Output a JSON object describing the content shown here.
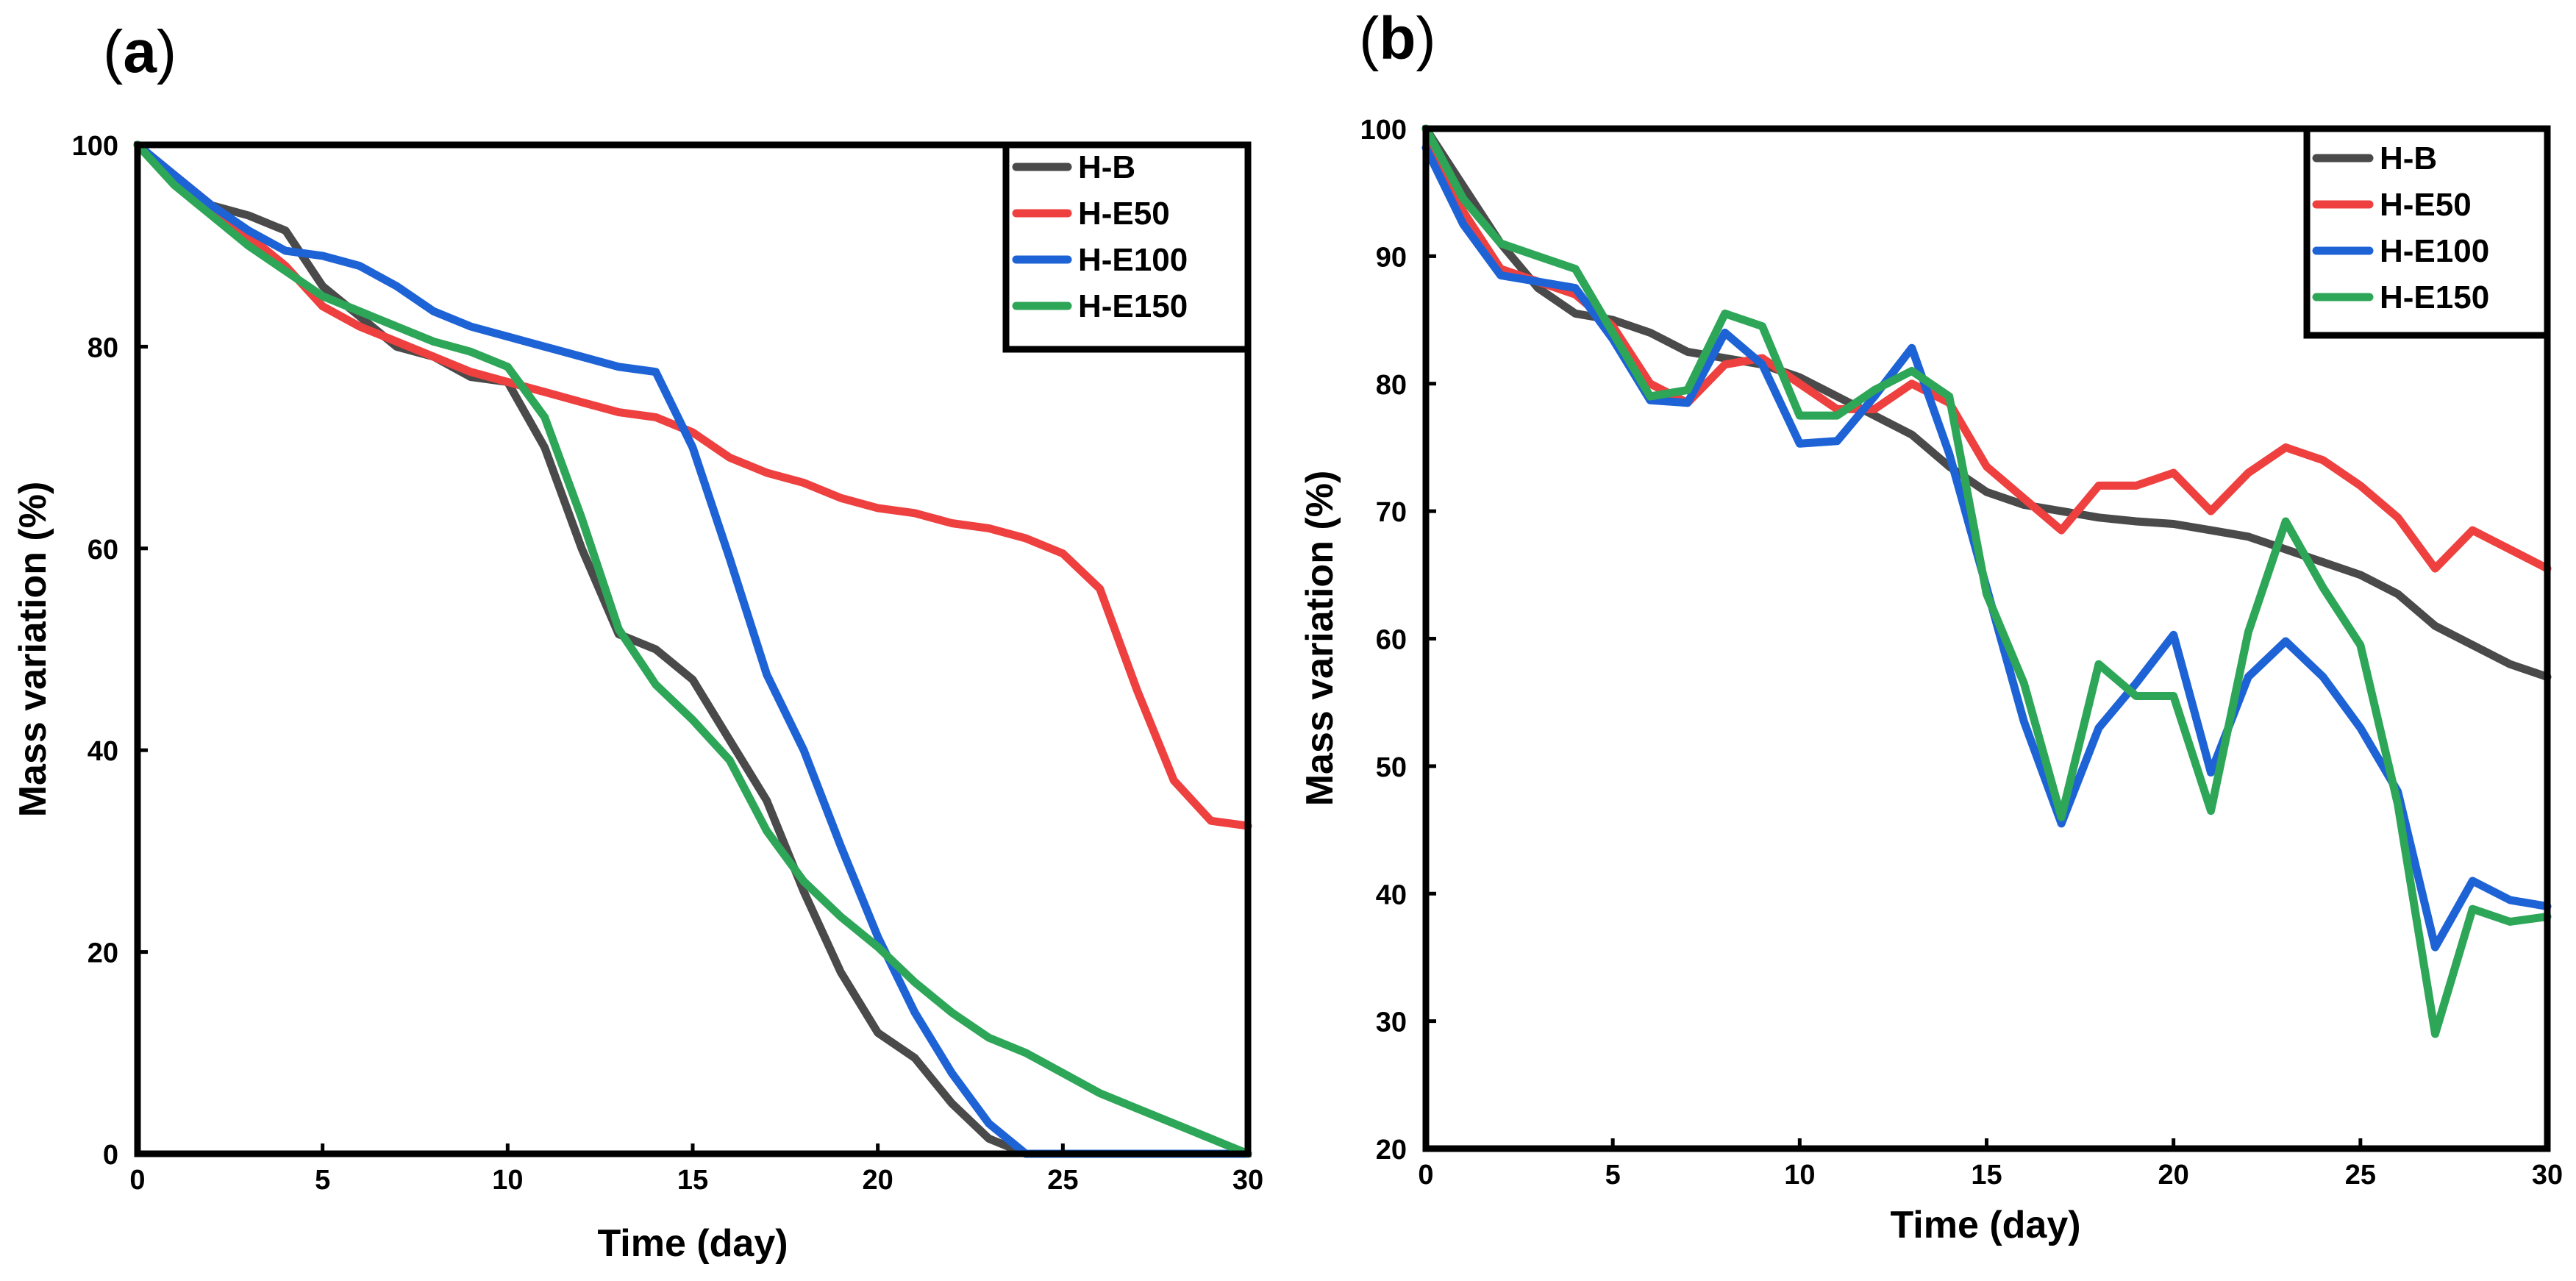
{
  "chart_data": [
    {
      "panel": "a",
      "type": "line",
      "xlabel": "Time (day)",
      "ylabel": "Mass variation (%)",
      "xlim": [
        0,
        30
      ],
      "ylim": [
        0,
        100
      ],
      "xticks": [
        0,
        5,
        10,
        15,
        20,
        25,
        30
      ],
      "yticks": [
        0,
        20,
        40,
        60,
        80,
        100
      ],
      "legend": "top-right",
      "series": [
        {
          "name": "H-B",
          "color": "#4a4a4a",
          "x": [
            0,
            1,
            2,
            2.5,
            3,
            4,
            5,
            6,
            7,
            8,
            9,
            10,
            11,
            12,
            13,
            14,
            15,
            16,
            17,
            18,
            19,
            20,
            21,
            22,
            23,
            24,
            25,
            26,
            27,
            28,
            29,
            30
          ],
          "values": [
            100,
            97,
            94,
            93.5,
            93,
            91.5,
            86,
            83,
            80,
            79,
            77,
            76.5,
            70,
            60,
            51.5,
            50,
            47,
            41,
            35,
            26,
            18,
            12,
            9.5,
            5,
            1.5,
            0,
            0,
            0,
            0,
            0,
            0,
            0
          ]
        },
        {
          "name": "H-E50",
          "color": "#ef4040",
          "x": [
            0,
            1,
            2,
            3,
            4,
            5,
            6,
            7,
            8,
            9,
            10,
            11,
            12,
            13,
            14,
            15,
            16,
            17,
            18,
            19,
            20,
            21,
            22,
            23,
            24,
            25,
            26,
            27,
            28,
            29,
            30
          ],
          "values": [
            100,
            97,
            94,
            91,
            88,
            84,
            82,
            80.5,
            79,
            77.5,
            76.5,
            75.5,
            74.5,
            73.5,
            73,
            71.5,
            69,
            67.5,
            66.5,
            65,
            64,
            63.5,
            62.5,
            62,
            61,
            59.5,
            56,
            46,
            37,
            33,
            32.5
          ]
        },
        {
          "name": "H-E100",
          "color": "#1e63d6",
          "x": [
            0,
            1,
            2,
            3,
            4,
            5,
            6,
            7,
            8,
            9,
            10,
            11,
            12,
            13,
            14,
            15,
            16,
            17,
            18,
            19,
            20,
            21,
            22,
            23,
            24,
            25,
            26,
            27,
            28,
            29,
            30
          ],
          "values": [
            100,
            97,
            94,
            91.5,
            89.5,
            89,
            88,
            86,
            83.5,
            82,
            81,
            80,
            79,
            78,
            77.5,
            70,
            59,
            47.5,
            40,
            30.5,
            21.5,
            14,
            8,
            3,
            0,
            0,
            0,
            0,
            0,
            0,
            0
          ]
        },
        {
          "name": "H-E150",
          "color": "#2ea658",
          "x": [
            0,
            1,
            2,
            3,
            4,
            5,
            6,
            7,
            8,
            9,
            10,
            11,
            12,
            13,
            14,
            15,
            16,
            17,
            18,
            19,
            20,
            21,
            22,
            23,
            24,
            25,
            26,
            27,
            28,
            29,
            30
          ],
          "values": [
            100,
            96,
            93,
            90,
            87.5,
            85,
            83.5,
            82,
            80.5,
            79.5,
            78,
            73,
            63,
            52,
            46.5,
            43,
            39,
            32,
            27,
            23.5,
            20.5,
            17,
            14,
            11.5,
            10,
            8,
            6,
            4.5,
            3,
            1.5,
            0
          ]
        }
      ]
    },
    {
      "panel": "b",
      "type": "line",
      "xlabel": "Time (day)",
      "ylabel": "Mass variation (%)",
      "xlim": [
        0,
        30
      ],
      "ylim": [
        20,
        100
      ],
      "xticks": [
        0,
        5,
        10,
        15,
        20,
        25,
        30
      ],
      "yticks": [
        20,
        30,
        40,
        50,
        60,
        70,
        80,
        90,
        100
      ],
      "legend": "top-right",
      "series": [
        {
          "name": "H-B",
          "color": "#4a4a4a",
          "x": [
            0,
            1,
            2,
            3,
            4,
            5,
            6,
            7,
            8,
            9,
            10,
            11,
            12,
            13,
            14,
            15,
            16,
            17,
            18,
            19,
            20,
            21,
            22,
            23,
            24,
            25,
            26,
            27,
            28,
            29,
            30
          ],
          "values": [
            100,
            95.5,
            91,
            87.5,
            85.5,
            85,
            84,
            82.5,
            82,
            81.5,
            80.5,
            79,
            77.5,
            76,
            73.5,
            71.5,
            70.5,
            70,
            69.5,
            69.2,
            69,
            68.5,
            68,
            67,
            66,
            65,
            63.5,
            61,
            59.5,
            58,
            57
          ]
        },
        {
          "name": "H-E50",
          "color": "#ef4040",
          "x": [
            0,
            1,
            2,
            3,
            4,
            5,
            6,
            7,
            8,
            9,
            10,
            11,
            12,
            13,
            14,
            15,
            16,
            17,
            18,
            19,
            20,
            21,
            22,
            23,
            24,
            25,
            26,
            27,
            28,
            29,
            30
          ],
          "values": [
            100,
            93.5,
            89,
            88,
            87,
            84.5,
            80,
            78.5,
            81.5,
            82,
            80,
            78,
            78,
            80,
            78.5,
            73.5,
            71,
            68.5,
            72,
            72,
            73,
            70,
            73,
            75,
            74,
            72,
            69.5,
            65.5,
            68.5,
            67,
            65.5
          ]
        },
        {
          "name": "H-E100",
          "color": "#1e63d6",
          "x": [
            0,
            1,
            2,
            3,
            4,
            5,
            6,
            7,
            8,
            9,
            10,
            11,
            12,
            13,
            14,
            15,
            16,
            17,
            18,
            19,
            20,
            21,
            22,
            23,
            24,
            25,
            26,
            27,
            28,
            29,
            30
          ],
          "values": [
            98.5,
            92.5,
            88.5,
            88,
            87.5,
            83.5,
            78.7,
            78.5,
            84,
            81.5,
            75.3,
            75.5,
            79,
            82.8,
            74.5,
            64,
            53.5,
            45.5,
            53,
            56.5,
            60.3,
            49.5,
            57,
            59.8,
            57,
            53,
            48,
            35.8,
            41,
            39.5,
            39
          ]
        },
        {
          "name": "H-E150",
          "color": "#2ea658",
          "x": [
            0,
            1,
            2,
            3,
            4,
            5,
            6,
            7,
            8,
            9,
            10,
            11,
            12,
            13,
            14,
            15,
            16,
            17,
            18,
            19,
            20,
            21,
            22,
            23,
            24,
            25,
            26,
            27,
            28,
            29,
            30
          ],
          "values": [
            100,
            94.5,
            91,
            90,
            89,
            84,
            79,
            79.5,
            85.5,
            84.5,
            77.5,
            77.5,
            79.5,
            81,
            79,
            63.5,
            56.5,
            46,
            58,
            55.5,
            55.5,
            46.5,
            60.5,
            69.2,
            64,
            59.5,
            47,
            29,
            38.8,
            37.8,
            38.2
          ]
        }
      ]
    }
  ]
}
